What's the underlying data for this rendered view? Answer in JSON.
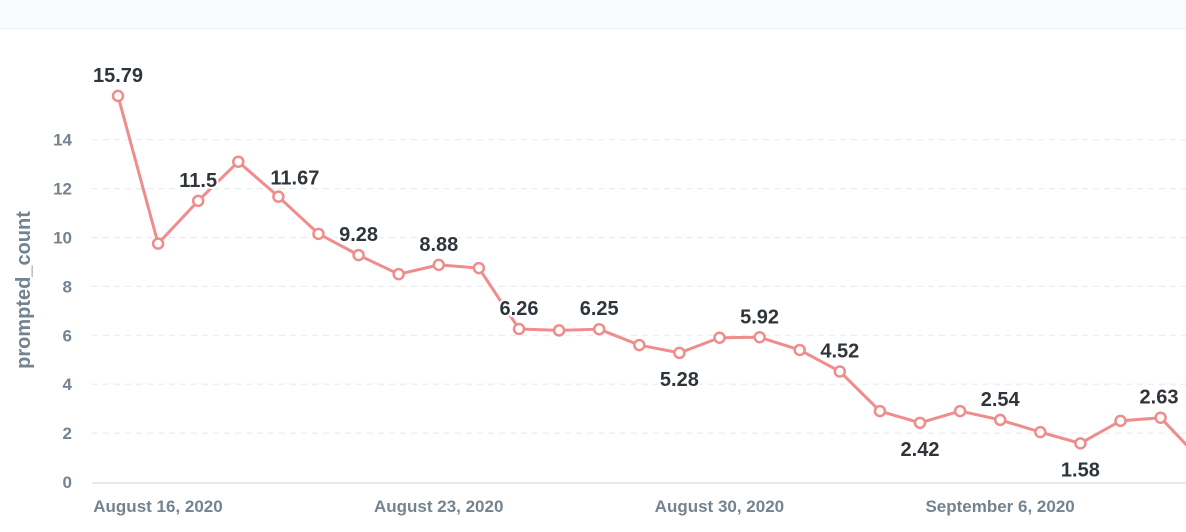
{
  "chart_data": {
    "type": "line",
    "title": "",
    "xlabel": "",
    "ylabel": "prompted_count",
    "ylim": [
      0,
      16
    ],
    "yticks": [
      0,
      2,
      4,
      6,
      8,
      10,
      12,
      14
    ],
    "grid": true,
    "line_color": "#ef8c8c",
    "x_tick_labels": [
      {
        "date": "2020-08-16",
        "label": "August 16, 2020"
      },
      {
        "date": "2020-08-23",
        "label": "August 23, 2020"
      },
      {
        "date": "2020-08-30",
        "label": "August 30, 2020"
      },
      {
        "date": "2020-09-06",
        "label": "September 6, 2020"
      }
    ],
    "x": [
      "2020-08-16",
      "2020-08-17",
      "2020-08-18",
      "2020-08-19",
      "2020-08-20",
      "2020-08-21",
      "2020-08-22",
      "2020-08-23",
      "2020-08-24",
      "2020-08-25",
      "2020-08-26",
      "2020-08-27",
      "2020-08-28",
      "2020-08-29",
      "2020-08-30",
      "2020-08-31",
      "2020-09-01",
      "2020-09-02",
      "2020-09-03",
      "2020-09-04",
      "2020-09-05",
      "2020-09-06",
      "2020-09-07",
      "2020-09-08",
      "2020-09-09",
      "2020-09-10",
      "2020-09-11",
      "2020-09-12"
    ],
    "values": [
      15.79,
      9.75,
      11.5,
      13.1,
      11.67,
      10.15,
      9.28,
      8.5,
      8.88,
      8.75,
      6.26,
      6.2,
      6.25,
      5.6,
      5.28,
      5.9,
      5.92,
      5.4,
      4.52,
      2.9,
      2.42,
      2.9,
      2.54,
      2.04,
      1.58,
      2.5,
      2.63,
      0.9
    ],
    "data_labels": [
      {
        "x": "2020-08-16",
        "text": "15.79",
        "pos": "above"
      },
      {
        "x": "2020-08-18",
        "text": "11.5",
        "pos": "above"
      },
      {
        "x": "2020-08-20",
        "text": "11.67",
        "pos": "above-right"
      },
      {
        "x": "2020-08-22",
        "text": "9.28",
        "pos": "above"
      },
      {
        "x": "2020-08-24",
        "text": "8.88",
        "pos": "above"
      },
      {
        "x": "2020-08-26",
        "text": "6.26",
        "pos": "above"
      },
      {
        "x": "2020-08-28",
        "text": "6.25",
        "pos": "above"
      },
      {
        "x": "2020-08-30",
        "text": "5.28",
        "pos": "below"
      },
      {
        "x": "2020-09-01",
        "text": "5.92",
        "pos": "above"
      },
      {
        "x": "2020-09-03",
        "text": "4.52",
        "pos": "above"
      },
      {
        "x": "2020-09-05",
        "text": "2.42",
        "pos": "below"
      },
      {
        "x": "2020-09-07",
        "text": "2.54",
        "pos": "above"
      },
      {
        "x": "2020-09-09",
        "text": "1.58",
        "pos": "below"
      },
      {
        "x": "2020-09-11",
        "text": "2.63",
        "pos": "above"
      }
    ]
  }
}
